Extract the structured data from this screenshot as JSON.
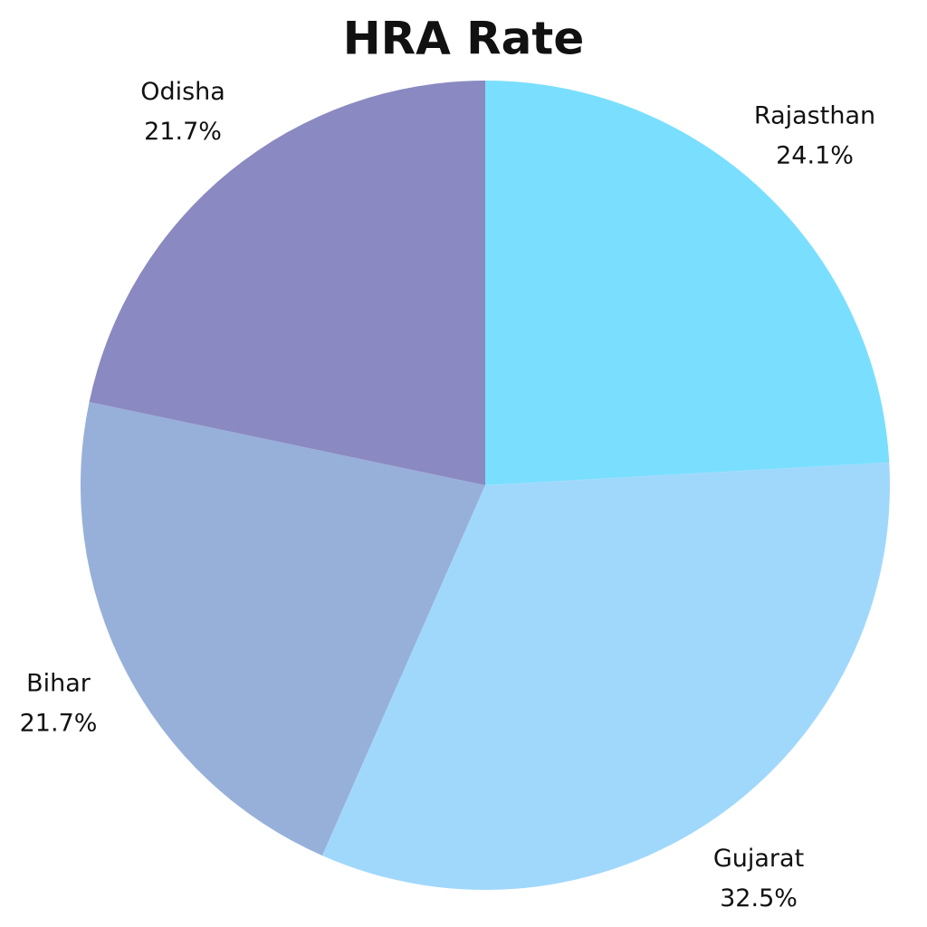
{
  "chart_data": {
    "type": "pie",
    "title": "HRA Rate",
    "categories": [
      "Rajasthan",
      "Gujarat",
      "Bihar",
      "Odisha"
    ],
    "values": [
      24.1,
      32.5,
      21.7,
      21.7
    ],
    "value_labels": [
      "24.1%",
      "32.5%",
      "21.7%",
      "21.7%"
    ],
    "colors": [
      "#7adfff",
      "#a0d8fc",
      "#97b0d9",
      "#8a89c1"
    ]
  }
}
